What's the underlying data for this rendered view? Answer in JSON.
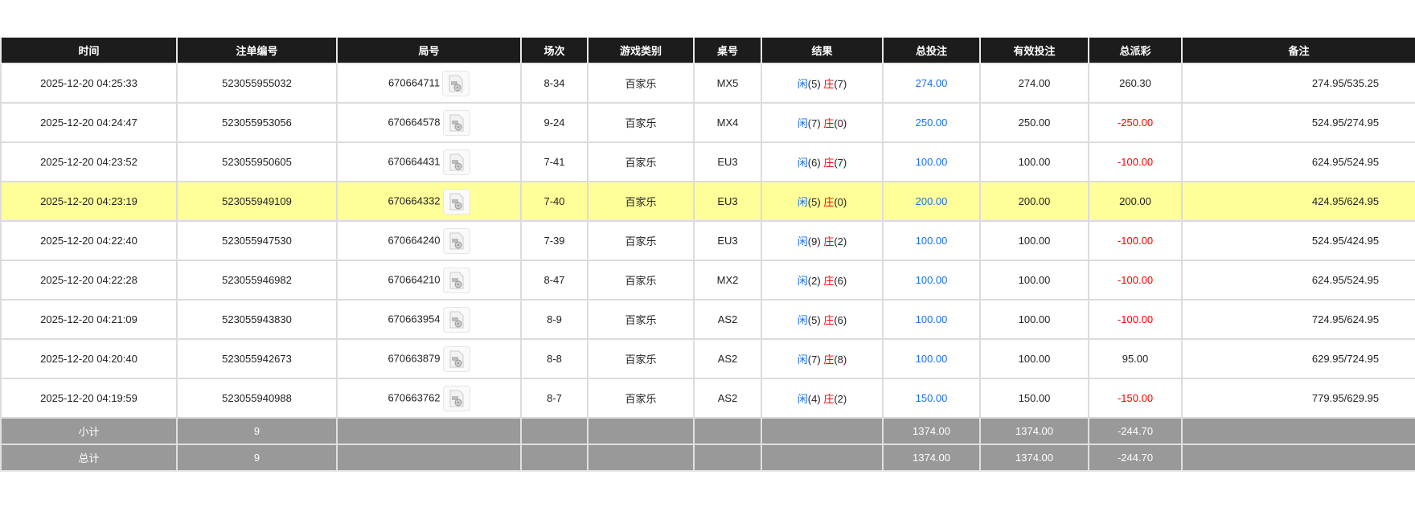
{
  "headers": [
    "时间",
    "注单编号",
    "局号",
    "场次",
    "游戏类别",
    "桌号",
    "结果",
    "总投注",
    "有效投注",
    "总派彩",
    "备注"
  ],
  "rows": [
    {
      "time": "2025-12-20 04:25:33",
      "bet_id": "523055955032",
      "round": "670664711",
      "shoe": "8-34",
      "game": "百家乐",
      "table": "MX5",
      "player_label": "闲",
      "player": "(5)",
      "banker_label": "庄",
      "banker": "(7)",
      "total_bet": "274.00",
      "valid_bet": "274.00",
      "payout": "260.30",
      "payout_negative": false,
      "remark": "274.95/535.25",
      "highlight": false
    },
    {
      "time": "2025-12-20 04:24:47",
      "bet_id": "523055953056",
      "round": "670664578",
      "shoe": "9-24",
      "game": "百家乐",
      "table": "MX4",
      "player_label": "闲",
      "player": "(7)",
      "banker_label": "庄",
      "banker": "(0)",
      "total_bet": "250.00",
      "valid_bet": "250.00",
      "payout": "-250.00",
      "payout_negative": true,
      "remark": "524.95/274.95",
      "highlight": false
    },
    {
      "time": "2025-12-20 04:23:52",
      "bet_id": "523055950605",
      "round": "670664431",
      "shoe": "7-41",
      "game": "百家乐",
      "table": "EU3",
      "player_label": "闲",
      "player": "(6)",
      "banker_label": "庄",
      "banker": "(7)",
      "total_bet": "100.00",
      "valid_bet": "100.00",
      "payout": "-100.00",
      "payout_negative": true,
      "remark": "624.95/524.95",
      "highlight": false
    },
    {
      "time": "2025-12-20 04:23:19",
      "bet_id": "523055949109",
      "round": "670664332",
      "shoe": "7-40",
      "game": "百家乐",
      "table": "EU3",
      "player_label": "闲",
      "player": "(5)",
      "banker_label": "庄",
      "banker": "(0)",
      "total_bet": "200.00",
      "valid_bet": "200.00",
      "payout": "200.00",
      "payout_negative": false,
      "remark": "424.95/624.95",
      "highlight": true
    },
    {
      "time": "2025-12-20 04:22:40",
      "bet_id": "523055947530",
      "round": "670664240",
      "shoe": "7-39",
      "game": "百家乐",
      "table": "EU3",
      "player_label": "闲",
      "player": "(9)",
      "banker_label": "庄",
      "banker": "(2)",
      "total_bet": "100.00",
      "valid_bet": "100.00",
      "payout": "-100.00",
      "payout_negative": true,
      "remark": "524.95/424.95",
      "highlight": false
    },
    {
      "time": "2025-12-20 04:22:28",
      "bet_id": "523055946982",
      "round": "670664210",
      "shoe": "8-47",
      "game": "百家乐",
      "table": "MX2",
      "player_label": "闲",
      "player": "(2)",
      "banker_label": "庄",
      "banker": "(6)",
      "total_bet": "100.00",
      "valid_bet": "100.00",
      "payout": "-100.00",
      "payout_negative": true,
      "remark": "624.95/524.95",
      "highlight": false
    },
    {
      "time": "2025-12-20 04:21:09",
      "bet_id": "523055943830",
      "round": "670663954",
      "shoe": "8-9",
      "game": "百家乐",
      "table": "AS2",
      "player_label": "闲",
      "player": "(5)",
      "banker_label": "庄",
      "banker": "(6)",
      "total_bet": "100.00",
      "valid_bet": "100.00",
      "payout": "-100.00",
      "payout_negative": true,
      "remark": "724.95/624.95",
      "highlight": false
    },
    {
      "time": "2025-12-20 04:20:40",
      "bet_id": "523055942673",
      "round": "670663879",
      "shoe": "8-8",
      "game": "百家乐",
      "table": "AS2",
      "player_label": "闲",
      "player": "(7)",
      "banker_label": "庄",
      "banker": "(8)",
      "total_bet": "100.00",
      "valid_bet": "100.00",
      "payout": "95.00",
      "payout_negative": false,
      "remark": "629.95/724.95",
      "highlight": false
    },
    {
      "time": "2025-12-20 04:19:59",
      "bet_id": "523055940988",
      "round": "670663762",
      "shoe": "8-7",
      "game": "百家乐",
      "table": "AS2",
      "player_label": "闲",
      "player": "(4)",
      "banker_label": "庄",
      "banker": "(2)",
      "total_bet": "150.00",
      "valid_bet": "150.00",
      "payout": "-150.00",
      "payout_negative": true,
      "remark": "779.95/629.95",
      "highlight": false
    }
  ],
  "summary": [
    {
      "label": "小计",
      "count": "9",
      "total_bet": "1374.00",
      "valid_bet": "1374.00",
      "payout": "-244.70"
    },
    {
      "label": "总计",
      "count": "9",
      "total_bet": "1374.00",
      "valid_bet": "1374.00",
      "payout": "-244.70"
    }
  ],
  "colors": {
    "header_bg": "#1c1c1c",
    "highlight_row": "#ffff99",
    "summary_bg": "#999999",
    "bet_blue": "#1a6ff0",
    "negative_red": "#ff0000"
  },
  "icons": {
    "round_video": "video-replay-icon"
  }
}
